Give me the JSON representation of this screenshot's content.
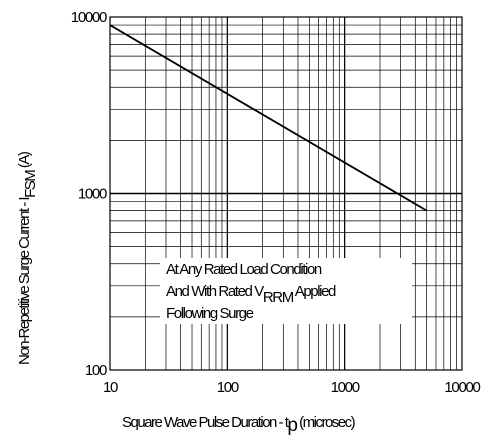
{
  "chart_data": {
    "type": "line",
    "title": "",
    "x_scale": "log",
    "y_scale": "log",
    "xlim": [
      10,
      10000
    ],
    "ylim": [
      100,
      10000
    ],
    "grid": true,
    "x_ticks": [
      "10",
      "100",
      "1000",
      "10000"
    ],
    "y_ticks": [
      "100",
      "1000",
      "10000"
    ],
    "xlabel": {
      "text": "Square Wave Pulse Duration - t",
      "subscript": "p",
      "suffix": " (microsec)"
    },
    "ylabel": {
      "text": "Non-Repetitive Surge Current - I",
      "subscript": "FSM",
      "suffix": " (A)"
    },
    "series": [
      {
        "x": [
          10,
          5000
        ],
        "y": [
          9000,
          800
        ]
      }
    ],
    "annotation": {
      "line1": "At Any Rated Load Condition",
      "line2_prefix": "And With Rated V",
      "line2_subscript": "RRM",
      "line2_suffix": " Applied",
      "line3": "Following Surge"
    },
    "line_color": "#000000"
  }
}
